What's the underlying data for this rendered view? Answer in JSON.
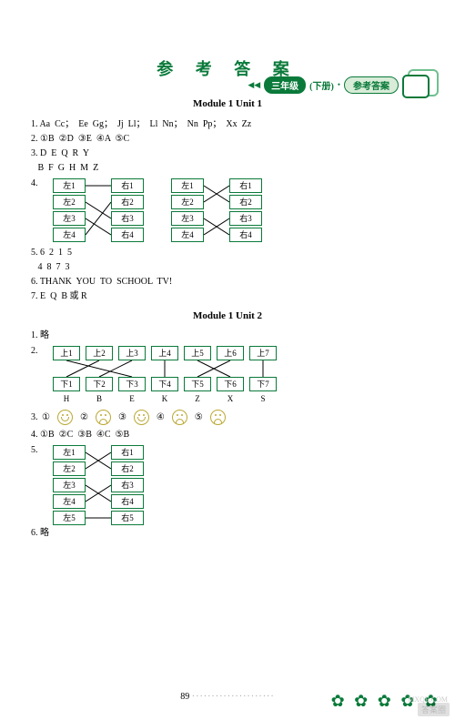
{
  "header": {
    "arrows": "◀◀",
    "grade": "三年级",
    "volume": "(下册)",
    "section": "参考答案"
  },
  "title": "参 考 答 案",
  "mod1u1": {
    "title": "Module 1   Unit 1",
    "l1": "1. Aa  Cc；  Ee  Gg；  Jj  Ll；  Ll  Nn；  Nn  Pp；  Xx  Zz",
    "l2": "2. ①B  ②D  ③E  ④A  ⑤C",
    "l3a": "3. D  E  Q  R  Y",
    "l3b": "   B  F  G  H  M  Z",
    "q4num": "4.",
    "l5a": "5. 6  2  1  5",
    "l5b": "   4  8  7  3",
    "l6": "6. THANK  YOU  TO  SCHOOL  TV!",
    "l7": "7. E  Q  B 或 R"
  },
  "match1": {
    "left": [
      "左1",
      "左2",
      "左3",
      "左4"
    ],
    "right": [
      "右1",
      "右2",
      "右3",
      "右4"
    ],
    "edgesA": [
      [
        0,
        0
      ],
      [
        1,
        2
      ],
      [
        2,
        3
      ],
      [
        3,
        1
      ]
    ],
    "edgesB": [
      [
        0,
        1
      ],
      [
        1,
        0
      ],
      [
        2,
        3
      ],
      [
        3,
        2
      ]
    ]
  },
  "mod1u2": {
    "title": "Module 1   Unit 2",
    "l1": "1. 略",
    "q2num": "2.",
    "top": [
      "上1",
      "上2",
      "上3",
      "上4",
      "上5",
      "上6",
      "上7"
    ],
    "bot": [
      "下1",
      "下2",
      "下3",
      "下4",
      "下5",
      "下6",
      "下7"
    ],
    "edges": [
      [
        0,
        2
      ],
      [
        1,
        0
      ],
      [
        2,
        1
      ],
      [
        3,
        3
      ],
      [
        4,
        5
      ],
      [
        5,
        4
      ],
      [
        6,
        6
      ]
    ],
    "letters": [
      "H",
      "B",
      "E",
      "K",
      "Z",
      "X",
      "S"
    ],
    "l3": "3. ①",
    "faces": [
      "happy",
      "sad",
      "happy",
      "sad",
      "sad"
    ],
    "faceNums": [
      "①",
      "②",
      "③",
      "④",
      "⑤"
    ],
    "l4": "4. ①B  ②C  ③B  ④C  ⑤B",
    "q5num": "5.",
    "m5left": [
      "左1",
      "左2",
      "左3",
      "左4",
      "左5"
    ],
    "m5right": [
      "右1",
      "右2",
      "右3",
      "右4",
      "右5"
    ],
    "m5edges": [
      [
        0,
        1
      ],
      [
        1,
        0
      ],
      [
        2,
        3
      ],
      [
        3,
        2
      ],
      [
        4,
        4
      ]
    ],
    "l6": "6. 略"
  },
  "pageNum": "89",
  "watermark": "答案圈",
  "wmUrl": "MXQE.COM"
}
